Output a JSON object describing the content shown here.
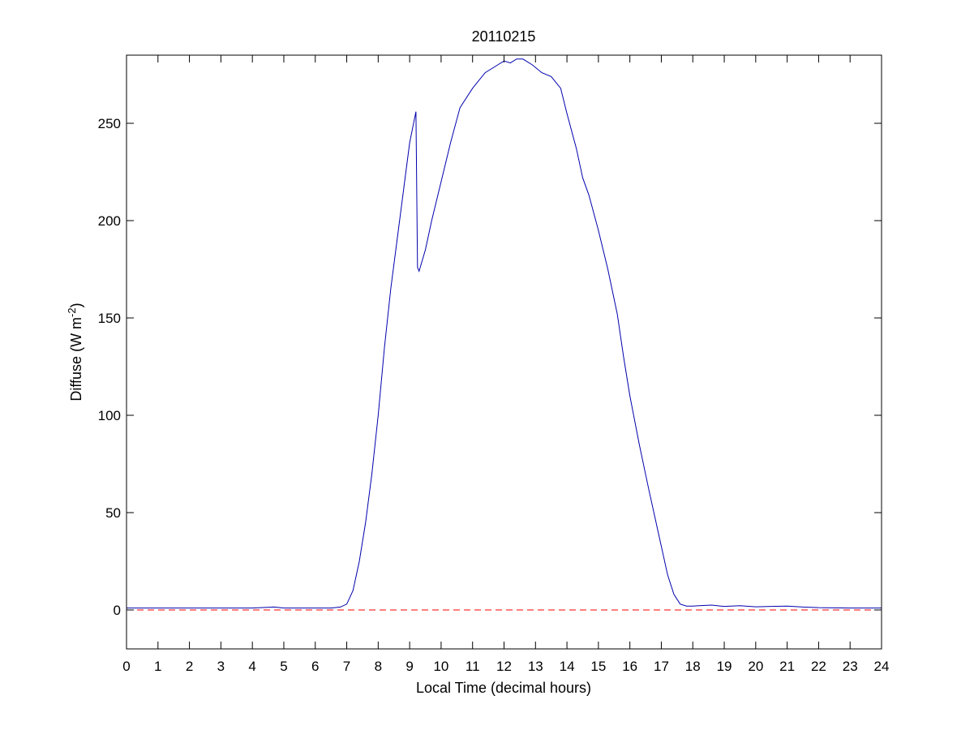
{
  "chart_data": {
    "type": "line",
    "title": "20110215",
    "xlabel": "Local Time (decimal hours)",
    "ylabel": {
      "main": "Diffuse (W m",
      "superscript": "-2",
      "suffix": ")"
    },
    "xlim": [
      0,
      24
    ],
    "ylim": [
      -20,
      285
    ],
    "x_ticks": [
      0,
      1,
      2,
      3,
      4,
      5,
      6,
      7,
      8,
      9,
      10,
      11,
      12,
      13,
      14,
      15,
      16,
      17,
      18,
      19,
      20,
      21,
      22,
      23,
      24
    ],
    "y_ticks": [
      0,
      50,
      100,
      150,
      200,
      250
    ],
    "grid": false,
    "series": [
      {
        "color": "#0000ad",
        "style": "solid",
        "x": [
          0,
          1,
          2,
          3,
          4,
          4.7,
          5,
          6,
          6.5,
          6.8,
          7.0,
          7.2,
          7.4,
          7.6,
          7.8,
          8.0,
          8.2,
          8.4,
          8.6,
          8.8,
          9.0,
          9.2,
          9.25,
          9.3,
          9.5,
          9.7,
          10.0,
          10.3,
          10.6,
          11.0,
          11.4,
          11.8,
          12.0,
          12.2,
          12.4,
          12.6,
          12.9,
          13.2,
          13.5,
          13.8,
          14.0,
          14.3,
          14.5,
          14.7,
          14.8,
          15.0,
          15.3,
          15.6,
          15.8,
          16.0,
          16.3,
          16.6,
          16.9,
          17.2,
          17.4,
          17.6,
          17.8,
          18.0,
          18.2,
          18.6,
          19.0,
          19.5,
          20.0,
          20.5,
          21.0,
          21.5,
          22.0,
          23.0,
          24.0
        ],
        "y": [
          1,
          1,
          1,
          1,
          1,
          1.5,
          1,
          1,
          1,
          1.5,
          3,
          10,
          25,
          45,
          70,
          100,
          135,
          165,
          190,
          215,
          240,
          256,
          176,
          174,
          185,
          200,
          220,
          240,
          258,
          268,
          276,
          280,
          282,
          281,
          283,
          283,
          280,
          276,
          274,
          268,
          255,
          237,
          222,
          213,
          207,
          195,
          175,
          152,
          130,
          110,
          85,
          62,
          40,
          18,
          8,
          3,
          2,
          2,
          2.2,
          2.5,
          1.8,
          2.2,
          1.6,
          1.8,
          2.0,
          1.5,
          1.2,
          1,
          1
        ]
      },
      {
        "color": "#ff0000",
        "style": "dashed",
        "x": [
          0,
          24
        ],
        "y": [
          0,
          0
        ]
      }
    ]
  }
}
